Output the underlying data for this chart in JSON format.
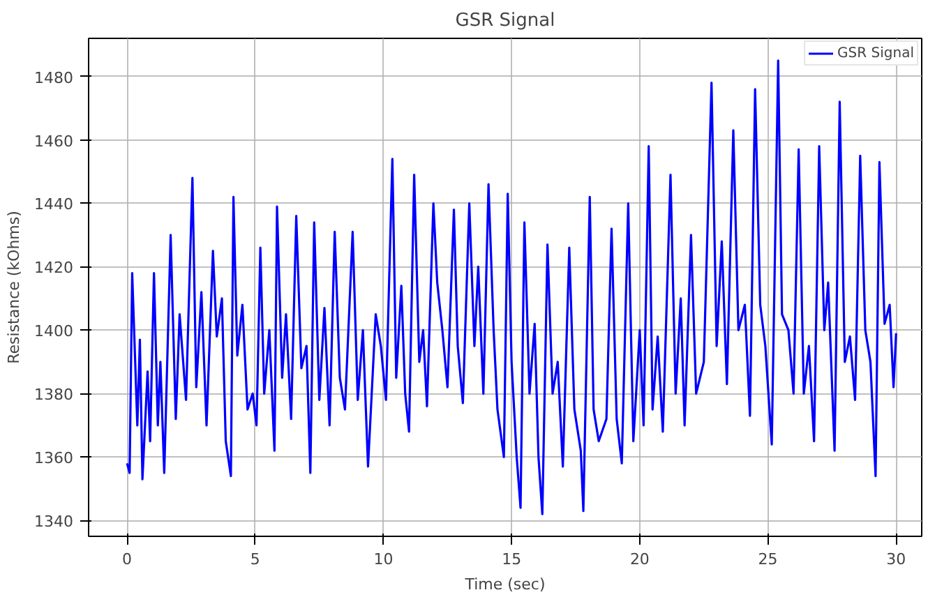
{
  "chart_data": {
    "type": "line",
    "title": "GSR Signal",
    "xlabel": "Time (sec)",
    "ylabel": "Resistance (kOhms)",
    "xlim": [
      -1.5,
      31
    ],
    "ylim": [
      1335,
      1492
    ],
    "xticks": [
      0,
      5,
      10,
      15,
      20,
      25,
      30
    ],
    "yticks": [
      1340,
      1360,
      1380,
      1400,
      1420,
      1440,
      1460,
      1480
    ],
    "grid": true,
    "legend": "top right",
    "marker": "none",
    "line_style": "solid",
    "series": [
      {
        "name": "GSR Signal",
        "color": "#0000ff",
        "x": [
          0,
          0.1,
          0.2,
          0.4,
          0.5,
          0.6,
          0.8,
          0.9,
          1.05,
          1.2,
          1.3,
          1.45,
          1.7,
          1.9,
          2.05,
          2.3,
          2.55,
          2.7,
          2.9,
          3.1,
          3.35,
          3.5,
          3.7,
          3.85,
          4.05,
          4.15,
          4.3,
          4.5,
          4.7,
          4.9,
          5.05,
          5.2,
          5.35,
          5.55,
          5.75,
          5.85,
          6.05,
          6.2,
          6.4,
          6.6,
          6.8,
          7.0,
          7.15,
          7.3,
          7.5,
          7.7,
          7.9,
          8.1,
          8.3,
          8.5,
          8.8,
          9.0,
          9.2,
          9.4,
          9.7,
          9.9,
          10.1,
          10.35,
          10.5,
          10.7,
          10.85,
          11.0,
          11.2,
          11.4,
          11.55,
          11.7,
          11.95,
          12.1,
          12.3,
          12.5,
          12.75,
          12.9,
          13.1,
          13.35,
          13.55,
          13.7,
          13.9,
          14.1,
          14.3,
          14.45,
          14.7,
          14.85,
          15.0,
          15.2,
          15.35,
          15.5,
          15.7,
          15.9,
          16.05,
          16.2,
          16.4,
          16.6,
          16.8,
          17.0,
          17.25,
          17.45,
          17.7,
          17.8,
          18.05,
          18.2,
          18.4,
          18.7,
          18.9,
          19.1,
          19.3,
          19.55,
          19.75,
          20.0,
          20.15,
          20.35,
          20.5,
          20.7,
          20.9,
          21.2,
          21.4,
          21.6,
          21.75,
          22.0,
          22.2,
          22.5,
          22.8,
          23.0,
          23.2,
          23.4,
          23.65,
          23.85,
          24.1,
          24.3,
          24.5,
          24.7,
          24.9,
          25.15,
          25.4,
          25.55,
          25.8,
          26.0,
          26.2,
          26.4,
          26.6,
          26.8,
          27.0,
          27.2,
          27.35,
          27.6,
          27.8,
          28.0,
          28.2,
          28.4,
          28.6,
          28.8,
          29.0,
          29.2,
          29.35,
          29.55,
          29.75,
          29.9,
          30.0
        ],
        "values": [
          1358,
          1355,
          1418,
          1370,
          1397,
          1353,
          1387,
          1365,
          1418,
          1370,
          1390,
          1355,
          1430,
          1372,
          1405,
          1378,
          1448,
          1382,
          1412,
          1370,
          1425,
          1398,
          1410,
          1365,
          1354,
          1442,
          1392,
          1408,
          1375,
          1380,
          1370,
          1426,
          1380,
          1400,
          1362,
          1439,
          1385,
          1405,
          1372,
          1436,
          1388,
          1395,
          1355,
          1434,
          1378,
          1407,
          1370,
          1431,
          1385,
          1375,
          1431,
          1378,
          1400,
          1357,
          1405,
          1395,
          1378,
          1454,
          1385,
          1414,
          1380,
          1368,
          1449,
          1390,
          1400,
          1376,
          1440,
          1415,
          1400,
          1382,
          1438,
          1395,
          1377,
          1440,
          1395,
          1420,
          1380,
          1446,
          1400,
          1375,
          1360,
          1443,
          1390,
          1360,
          1344,
          1434,
          1380,
          1402,
          1360,
          1342,
          1427,
          1380,
          1390,
          1357,
          1426,
          1375,
          1362,
          1343,
          1442,
          1375,
          1365,
          1372,
          1432,
          1372,
          1358,
          1440,
          1365,
          1400,
          1370,
          1458,
          1375,
          1398,
          1368,
          1449,
          1380,
          1410,
          1370,
          1430,
          1380,
          1390,
          1478,
          1395,
          1428,
          1383,
          1463,
          1400,
          1408,
          1373,
          1476,
          1408,
          1395,
          1364,
          1485,
          1405,
          1400,
          1380,
          1457,
          1380,
          1395,
          1365,
          1458,
          1400,
          1415,
          1362,
          1472,
          1390,
          1398,
          1378,
          1455,
          1400,
          1390,
          1354,
          1453,
          1402,
          1408,
          1382,
          1399
        ]
      }
    ]
  }
}
